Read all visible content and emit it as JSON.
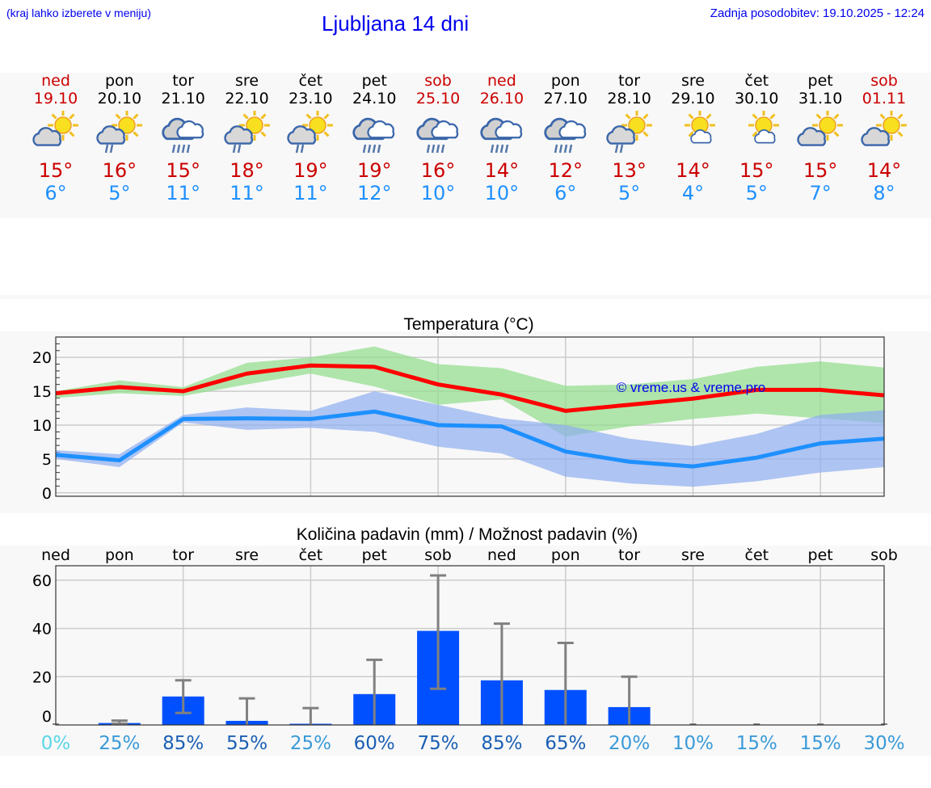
{
  "header": {
    "hint": "(kraj lahko izberete v meniju)",
    "title": "Ljubljana 14 dni",
    "updated": "Zadnja posodobitev: 19.10.2025 - 12:24"
  },
  "colors": {
    "weekend": "#cc0000",
    "max_line": "#ff0000",
    "min_line": "#1e90ff",
    "bar": "#0050ff",
    "error_bar": "#808080"
  },
  "days": [
    {
      "name": "ned",
      "date": "19.10",
      "weekend": true,
      "icon": "partly-cloudy-icon",
      "max": "15°",
      "min": "6°"
    },
    {
      "name": "pon",
      "date": "20.10",
      "weekend": false,
      "icon": "sun-cloud-light-rain-icon",
      "max": "16°",
      "min": "5°"
    },
    {
      "name": "tor",
      "date": "21.10",
      "weekend": false,
      "icon": "cloud-rain-icon",
      "max": "15°",
      "min": "11°"
    },
    {
      "name": "sre",
      "date": "22.10",
      "weekend": false,
      "icon": "sun-cloud-light-rain-icon",
      "max": "18°",
      "min": "11°"
    },
    {
      "name": "čet",
      "date": "23.10",
      "weekend": false,
      "icon": "sun-cloud-light-rain-icon",
      "max": "19°",
      "min": "11°"
    },
    {
      "name": "pet",
      "date": "24.10",
      "weekend": false,
      "icon": "cloud-rain-icon",
      "max": "19°",
      "min": "12°"
    },
    {
      "name": "sob",
      "date": "25.10",
      "weekend": true,
      "icon": "cloud-rain-icon",
      "max": "16°",
      "min": "10°"
    },
    {
      "name": "ned",
      "date": "26.10",
      "weekend": true,
      "icon": "cloud-rain-icon",
      "max": "14°",
      "min": "10°"
    },
    {
      "name": "pon",
      "date": "27.10",
      "weekend": false,
      "icon": "cloud-rain-icon",
      "max": "12°",
      "min": "6°"
    },
    {
      "name": "tor",
      "date": "28.10",
      "weekend": false,
      "icon": "sun-cloud-light-rain-icon",
      "max": "13°",
      "min": "5°"
    },
    {
      "name": "sre",
      "date": "29.10",
      "weekend": false,
      "icon": "sun-small-cloud-icon",
      "max": "14°",
      "min": "4°"
    },
    {
      "name": "čet",
      "date": "30.10",
      "weekend": false,
      "icon": "sun-small-cloud-icon",
      "max": "15°",
      "min": "5°"
    },
    {
      "name": "pet",
      "date": "31.10",
      "weekend": false,
      "icon": "partly-cloudy-icon",
      "max": "15°",
      "min": "7°"
    },
    {
      "name": "sob",
      "date": "01.11",
      "weekend": true,
      "icon": "partly-cloudy-icon",
      "max": "14°",
      "min": "8°"
    }
  ],
  "chart_data": [
    {
      "type": "line",
      "title": "Temperatura (°C)",
      "watermark": "© vreme.us & vreme.pro",
      "x": [
        "19.10",
        "20.10",
        "21.10",
        "22.10",
        "23.10",
        "24.10",
        "25.10",
        "26.10",
        "27.10",
        "28.10",
        "29.10",
        "30.10",
        "31.10",
        "01.11"
      ],
      "ylim": [
        -0.5,
        23
      ],
      "yticks": [
        0,
        5,
        10,
        15,
        20
      ],
      "grid": true,
      "series": [
        {
          "role": "max",
          "color": "#ff0000",
          "values": [
            14.7,
            15.6,
            15.0,
            17.6,
            18.8,
            18.6,
            16.0,
            14.5,
            12.1,
            13.0,
            13.9,
            15.2,
            15.2,
            14.4
          ],
          "band_upper": [
            15.0,
            16.6,
            15.6,
            19.2,
            20.0,
            21.6,
            19.0,
            18.4,
            15.8,
            16.0,
            16.8,
            18.6,
            19.4,
            18.5
          ],
          "band_lower": [
            14.0,
            14.7,
            14.3,
            16.0,
            17.6,
            15.7,
            13.0,
            13.8,
            8.3,
            9.8,
            10.9,
            11.7,
            11.0,
            10.3
          ],
          "band_color": "#90dd8a"
        },
        {
          "role": "min",
          "color": "#1e90ff",
          "values": [
            5.6,
            4.8,
            10.9,
            11.0,
            10.9,
            12.0,
            10.0,
            9.8,
            6.1,
            4.6,
            3.9,
            5.2,
            7.3,
            8.0
          ],
          "band_upper": [
            6.3,
            5.7,
            11.5,
            12.6,
            12.1,
            15.0,
            13.0,
            11.0,
            10.0,
            8.0,
            6.9,
            8.7,
            11.5,
            12.2
          ],
          "band_lower": [
            5.0,
            3.8,
            10.4,
            9.3,
            9.6,
            9.0,
            6.8,
            5.8,
            2.4,
            1.4,
            0.9,
            1.7,
            3.0,
            3.8
          ],
          "band_color": "#8eaef0"
        }
      ]
    },
    {
      "type": "bar",
      "title": "Količina padavin (mm) / Možnost padavin (%)",
      "categories": [
        "ned",
        "pon",
        "tor",
        "sre",
        "čet",
        "pet",
        "sob",
        "ned",
        "pon",
        "tor",
        "sre",
        "čet",
        "pet",
        "sob"
      ],
      "ylim": [
        0,
        66
      ],
      "yticks": [
        0,
        20,
        40,
        60
      ],
      "grid": true,
      "values": [
        0,
        0.8,
        11.8,
        1.7,
        0.5,
        12.8,
        39,
        18.5,
        14.5,
        7.4,
        0,
        0,
        0,
        0
      ],
      "error_low": [
        0,
        0.5,
        5,
        0,
        0,
        0,
        15,
        0,
        0,
        0,
        0,
        0,
        0,
        0
      ],
      "error_high": [
        0,
        1.8,
        18.5,
        11,
        7,
        27,
        62,
        42,
        34,
        20,
        0,
        0,
        0,
        0
      ],
      "probability": [
        "0%",
        "25%",
        "85%",
        "55%",
        "25%",
        "60%",
        "75%",
        "85%",
        "65%",
        "20%",
        "10%",
        "15%",
        "15%",
        "30%"
      ]
    }
  ]
}
